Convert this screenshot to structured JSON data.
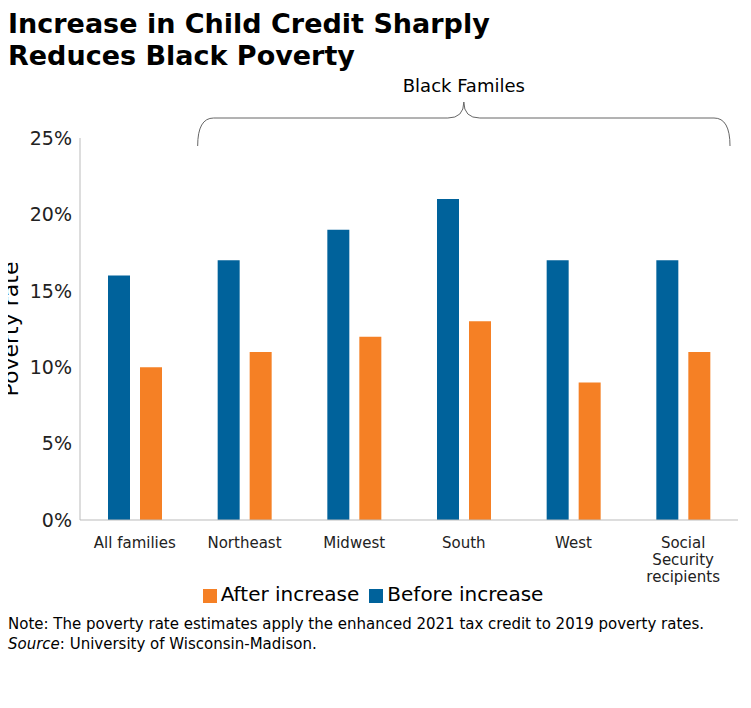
{
  "chart_data": {
    "type": "bar",
    "title": "Increase in Child Credit Sharply Reduces Black Poverty",
    "annotation": "Black Familes",
    "y_label": "Poverty rate",
    "categories": [
      "All families",
      "Northeast",
      "Midwest",
      "South",
      "West",
      "Social Security recipients"
    ],
    "series": [
      {
        "name": "Before increase",
        "color": "#00629b",
        "values": [
          16,
          17,
          19,
          21,
          17,
          17
        ]
      },
      {
        "name": "After increase",
        "color": "#f58025",
        "values": [
          10,
          11,
          12,
          13,
          9,
          11
        ]
      }
    ],
    "ylim": [
      0,
      25
    ],
    "yticks": [
      {
        "value": 0,
        "label": "0%"
      },
      {
        "value": 5,
        "label": "5%"
      },
      {
        "value": 10,
        "label": "10%"
      },
      {
        "value": 15,
        "label": "15%"
      },
      {
        "value": 20,
        "label": "20%"
      },
      {
        "value": 25,
        "label": "25%"
      }
    ],
    "grid": false,
    "legend": "bottom",
    "note": "Note: The poverty rate estimates apply the enhanced 2021 tax credit to 2019 poverty rates.",
    "source": "Source: University of Wisconsin-Madison."
  }
}
